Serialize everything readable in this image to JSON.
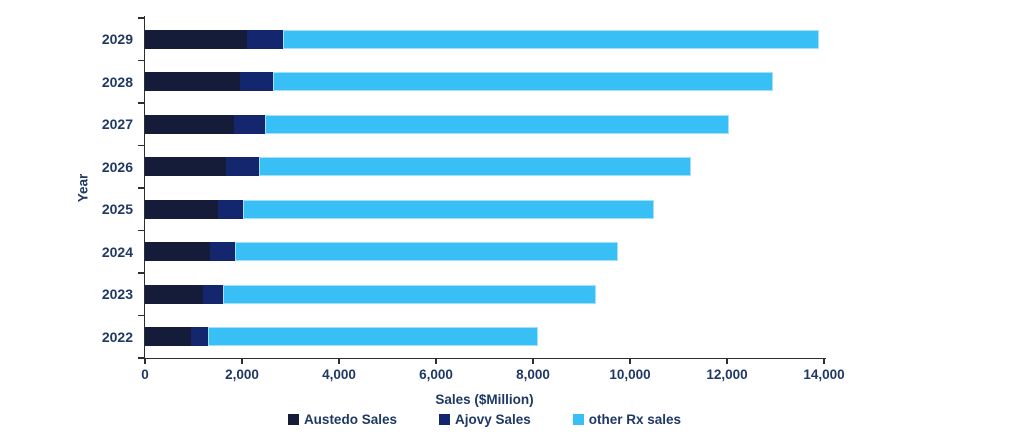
{
  "chart_data": {
    "type": "bar",
    "orientation": "horizontal",
    "stacked": true,
    "xlabel": "Sales ($Million)",
    "ylabel": "Year",
    "xlim": [
      0,
      14000
    ],
    "xtick_values": [
      0,
      2000,
      4000,
      6000,
      8000,
      10000,
      12000,
      14000
    ],
    "xtick_labels": [
      "0",
      "2,000",
      "4,000",
      "6,000",
      "8,000",
      "10,000",
      "12,000",
      "14,000"
    ],
    "categories": [
      "2029",
      "2028",
      "2027",
      "2026",
      "2025",
      "2024",
      "2023",
      "2022"
    ],
    "series": [
      {
        "name": "Austedo Sales",
        "color": "#151c39",
        "values": [
          2100,
          1950,
          1825,
          1675,
          1500,
          1350,
          1200,
          950
        ]
      },
      {
        "name": "Ajovy Sales",
        "color": "#13266e",
        "values": [
          740,
          690,
          650,
          675,
          525,
          500,
          400,
          350
        ]
      },
      {
        "name": "other Rx sales",
        "color": "#38c0f6",
        "values": [
          11060,
          10310,
          9575,
          8900,
          8475,
          7900,
          7700,
          6800
        ]
      }
    ],
    "totals": [
      13900,
      12950,
      12050,
      11250,
      10500,
      9750,
      9300,
      8100
    ],
    "legend_position": "bottom",
    "grid": false,
    "axis_color": "#2e2e2e",
    "text_color": "#1f3864",
    "background": "#ffffff"
  }
}
